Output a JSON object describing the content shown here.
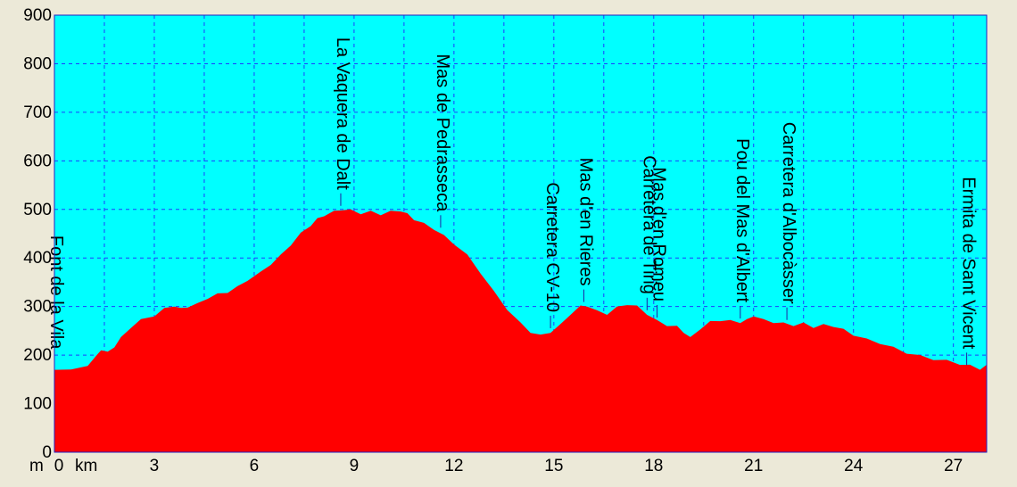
{
  "chart_data": {
    "type": "area",
    "title": "",
    "xlabel": "km",
    "ylabel": "m",
    "xlim": [
      0,
      28
    ],
    "ylim": [
      0,
      900
    ],
    "x_ticks": [
      0,
      3,
      6,
      9,
      12,
      15,
      18,
      21,
      24,
      27
    ],
    "y_ticks": [
      0,
      100,
      200,
      300,
      400,
      500,
      600,
      700,
      800,
      900
    ],
    "x_tick_labels": [
      "0",
      "3",
      "6",
      "9",
      "12",
      "15",
      "18",
      "21",
      "24",
      "27"
    ],
    "y_tick_labels": [
      "0",
      "100",
      "200",
      "300",
      "400",
      "500",
      "600",
      "700",
      "800",
      "900"
    ],
    "grid": true,
    "colors": {
      "plot_background": "#00ffff",
      "fill": "#ff0000",
      "grid": "#1e3cff",
      "frame": "#2020c0"
    },
    "profile": {
      "x": [
        0,
        0.5,
        1.0,
        1.3,
        1.4,
        1.6,
        1.8,
        2.0,
        2.3,
        2.6,
        3.0,
        3.3,
        3.6,
        3.8,
        4.0,
        4.3,
        4.6,
        4.9,
        5.2,
        5.5,
        5.8,
        6.2,
        6.5,
        6.8,
        7.1,
        7.4,
        7.7,
        7.9,
        8.1,
        8.4,
        8.6,
        8.9,
        9.2,
        9.5,
        9.8,
        10.1,
        10.4,
        10.6,
        10.8,
        11.1,
        11.4,
        11.7,
        12.0,
        12.4,
        12.8,
        13.2,
        13.6,
        14.0,
        14.3,
        14.6,
        14.9,
        15.2,
        15.5,
        15.8,
        16.0,
        16.3,
        16.6,
        16.9,
        17.2,
        17.5,
        17.8,
        18.1,
        18.4,
        18.7,
        18.9,
        19.1,
        19.4,
        19.7,
        20.0,
        20.3,
        20.6,
        20.8,
        21.0,
        21.3,
        21.6,
        21.9,
        22.2,
        22.5,
        22.8,
        23.1,
        23.4,
        23.7,
        24.0,
        24.4,
        24.8,
        25.2,
        25.6,
        26.0,
        26.4,
        26.8,
        27.2,
        27.5,
        27.8,
        28.0
      ],
      "y": [
        172,
        168,
        180,
        200,
        212,
        205,
        218,
        235,
        258,
        272,
        282,
        295,
        302,
        295,
        300,
        305,
        318,
        325,
        330,
        340,
        355,
        370,
        388,
        405,
        428,
        450,
        468,
        480,
        488,
        495,
        500,
        498,
        492,
        495,
        490,
        495,
        498,
        490,
        480,
        470,
        460,
        445,
        430,
        405,
        370,
        330,
        295,
        265,
        248,
        240,
        248,
        262,
        285,
        300,
        302,
        290,
        285,
        298,
        305,
        300,
        285,
        270,
        262,
        258,
        248,
        235,
        255,
        268,
        272,
        270,
        268,
        272,
        282,
        272,
        268,
        265,
        262,
        265,
        258,
        262,
        260,
        252,
        242,
        232,
        225,
        215,
        205,
        198,
        192,
        188,
        182,
        178,
        172,
        178
      ]
    },
    "waypoints": [
      {
        "name": "Font de la Vila",
        "km": 0.0,
        "elev": 172
      },
      {
        "name": "La Vaquera de Dalt",
        "km": 8.6,
        "elev": 500
      },
      {
        "name": "Mas de Pedrasseca",
        "km": 11.6,
        "elev": 455
      },
      {
        "name": "Carretera CV-10",
        "km": 14.9,
        "elev": 248
      },
      {
        "name": "Mas d'en Rieres",
        "km": 15.9,
        "elev": 302
      },
      {
        "name": "Carretera de Tirig",
        "km": 17.8,
        "elev": 285
      },
      {
        "name": "Mas d'en Romeu",
        "km": 18.1,
        "elev": 270
      },
      {
        "name": "Pou del Mas d'Albert",
        "km": 20.6,
        "elev": 268
      },
      {
        "name": "Carretera d'Albocàsser",
        "km": 22.0,
        "elev": 265
      },
      {
        "name": "Ermita de Sant Vicent",
        "km": 27.4,
        "elev": 172
      }
    ]
  }
}
